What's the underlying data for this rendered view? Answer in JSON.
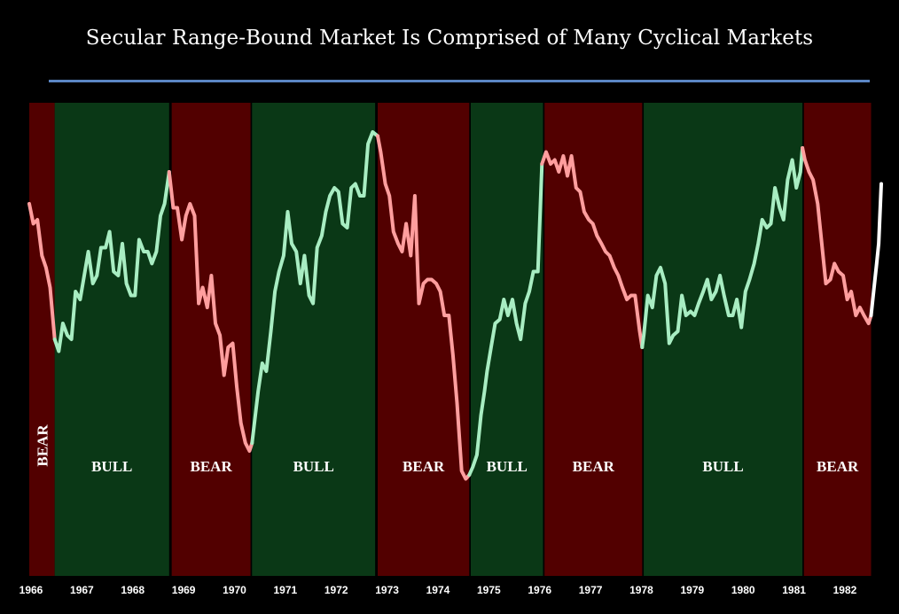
{
  "chart_data": {
    "type": "line",
    "title": "Secular Range-Bound Market Is Comprised of Many Cyclical Markets",
    "xlabel": "",
    "ylabel": "",
    "xlim": [
      1966.0,
      1982.75
    ],
    "ylim": [
      0,
      100
    ],
    "grid": false,
    "x_tick_labels": [
      "1966",
      "1967",
      "1968",
      "1969",
      "1970",
      "1971",
      "1972",
      "1973",
      "1974",
      "1975",
      "1976",
      "1977",
      "1978",
      "1979",
      "1980",
      "1981",
      "1982"
    ],
    "colors": {
      "background": "#000000",
      "bear_region": "#520000",
      "bull_region": "#0a3816",
      "bear_line": "#ff9e9e",
      "bull_line": "#a8edc2",
      "current_line": "#ffffff",
      "title_rule": "#5b86c4"
    },
    "regimes": [
      {
        "type": "bear",
        "label": "BEAR",
        "start": 1966.0,
        "end": 1966.5,
        "vertical": true
      },
      {
        "type": "bull",
        "label": "BULL",
        "start": 1966.5,
        "end": 1968.75
      },
      {
        "type": "bear",
        "label": "BEAR",
        "start": 1968.8,
        "end": 1970.35
      },
      {
        "type": "bull",
        "label": "BULL",
        "start": 1970.38,
        "end": 1972.8
      },
      {
        "type": "bear",
        "label": "BEAR",
        "start": 1972.85,
        "end": 1974.65
      },
      {
        "type": "bull",
        "label": "BULL",
        "start": 1974.68,
        "end": 1976.1
      },
      {
        "type": "bear",
        "label": "BEAR",
        "start": 1976.13,
        "end": 1978.05
      },
      {
        "type": "bull",
        "label": "BULL",
        "start": 1978.08,
        "end": 1981.2
      },
      {
        "type": "bear",
        "label": "BEAR",
        "start": 1981.23,
        "end": 1982.55
      }
    ],
    "series": [
      {
        "regime": "bear",
        "x": [
          1966.0,
          1966.08,
          1966.16,
          1966.25,
          1966.33,
          1966.41,
          1966.5
        ],
        "y": [
          80,
          75,
          76,
          67,
          64,
          59,
          46
        ]
      },
      {
        "regime": "bull",
        "x": [
          1966.5,
          1966.58,
          1966.66,
          1966.75,
          1966.83,
          1966.91,
          1967.0,
          1967.08,
          1967.16,
          1967.25,
          1967.33,
          1967.41,
          1967.5,
          1967.58,
          1967.66,
          1967.75,
          1967.83,
          1967.91,
          1968.0,
          1968.08,
          1968.16,
          1968.25,
          1968.33,
          1968.41,
          1968.5,
          1968.58,
          1968.66,
          1968.75
        ],
        "y": [
          46,
          43,
          50,
          47,
          46,
          58,
          56,
          62,
          68,
          60,
          62,
          69,
          69,
          73,
          63,
          62,
          70,
          60,
          57,
          57,
          71,
          68,
          68,
          65,
          68,
          77,
          80,
          88
        ]
      },
      {
        "regime": "bear",
        "x": [
          1968.75,
          1968.83,
          1968.91,
          1969.0,
          1969.08,
          1969.16,
          1969.25,
          1969.33,
          1969.41,
          1969.5,
          1969.58,
          1969.66,
          1969.75,
          1969.83,
          1969.91,
          1970.0,
          1970.08,
          1970.16,
          1970.25,
          1970.33,
          1970.38
        ],
        "y": [
          88,
          79,
          79,
          71,
          77,
          80,
          77,
          55,
          59,
          54,
          62,
          50,
          47,
          37,
          44,
          45,
          34,
          25,
          20,
          18,
          20
        ]
      },
      {
        "regime": "bull",
        "x": [
          1970.38,
          1970.5,
          1970.58,
          1970.66,
          1970.75,
          1970.83,
          1970.91,
          1971.0,
          1971.08,
          1971.16,
          1971.25,
          1971.33,
          1971.41,
          1971.5,
          1971.58,
          1971.66,
          1971.75,
          1971.83,
          1971.91,
          1972.0,
          1972.08,
          1972.16,
          1972.25,
          1972.33,
          1972.41,
          1972.5,
          1972.58,
          1972.66,
          1972.75,
          1972.85
        ],
        "y": [
          20,
          33,
          40,
          38,
          48,
          58,
          63,
          67,
          78,
          70,
          68,
          60,
          67,
          57,
          55,
          69,
          72,
          78,
          82,
          84,
          83,
          75,
          74,
          84,
          85,
          82,
          82,
          95,
          98,
          97
        ]
      },
      {
        "regime": "bear",
        "x": [
          1972.85,
          1972.91,
          1973.0,
          1973.08,
          1973.16,
          1973.25,
          1973.33,
          1973.41,
          1973.5,
          1973.58,
          1973.66,
          1973.75,
          1973.83,
          1973.91,
          1974.0,
          1974.08,
          1974.16,
          1974.25,
          1974.33,
          1974.41,
          1974.5,
          1974.58,
          1974.65
        ],
        "y": [
          97,
          93,
          85,
          82,
          73,
          70,
          68,
          75,
          67,
          82,
          55,
          60,
          61,
          61,
          60,
          58,
          52,
          52,
          42,
          30,
          13,
          11,
          12
        ]
      },
      {
        "regime": "bull",
        "x": [
          1974.65,
          1974.72,
          1974.8,
          1974.88,
          1974.95,
          1975.0,
          1975.08,
          1975.16,
          1975.25,
          1975.33,
          1975.41,
          1975.5,
          1975.58,
          1975.66,
          1975.75,
          1975.83,
          1975.91,
          1976.0,
          1976.08
        ],
        "y": [
          12,
          14,
          17,
          27,
          33,
          38,
          44,
          50,
          51,
          56,
          52,
          56,
          50,
          46,
          55,
          58,
          63,
          63,
          90
        ]
      },
      {
        "regime": "bear",
        "x": [
          1976.08,
          1976.16,
          1976.25,
          1976.33,
          1976.41,
          1976.5,
          1976.58,
          1976.66,
          1976.75,
          1976.83,
          1976.91,
          1977.0,
          1977.08,
          1977.16,
          1977.25,
          1977.33,
          1977.41,
          1977.5,
          1977.58,
          1977.66,
          1977.75,
          1977.83,
          1977.91,
          1978.0,
          1978.05
        ],
        "y": [
          90,
          93,
          90,
          91,
          88,
          92,
          87,
          92,
          84,
          83,
          78,
          76,
          75,
          72,
          70,
          68,
          67,
          64,
          62,
          59,
          56,
          57,
          57,
          48,
          44
        ]
      },
      {
        "regime": "bull",
        "x": [
          1978.05,
          1978.08,
          1978.16,
          1978.25,
          1978.33,
          1978.41,
          1978.5,
          1978.58,
          1978.66,
          1978.75,
          1978.83,
          1978.91,
          1979.0,
          1979.08,
          1979.16,
          1979.25,
          1979.33,
          1979.41,
          1979.5,
          1979.58,
          1979.66,
          1979.75,
          1979.83,
          1979.91,
          1980.0,
          1980.08,
          1980.16,
          1980.25,
          1980.33,
          1980.41,
          1980.5,
          1980.58,
          1980.66,
          1980.75,
          1980.83,
          1980.91,
          1981.0,
          1981.08,
          1981.16,
          1981.2
        ],
        "y": [
          44,
          47,
          57,
          54,
          62,
          64,
          60,
          45,
          47,
          48,
          57,
          52,
          53,
          52,
          55,
          58,
          61,
          56,
          58,
          62,
          57,
          52,
          52,
          56,
          49,
          58,
          61,
          65,
          70,
          76,
          74,
          75,
          84,
          79,
          76,
          86,
          91,
          84,
          88,
          94
        ]
      },
      {
        "regime": "bear",
        "x": [
          1981.2,
          1981.25,
          1981.33,
          1981.41,
          1981.5,
          1981.58,
          1981.66,
          1981.75,
          1981.83,
          1981.91,
          1982.0,
          1982.08,
          1982.16,
          1982.25,
          1982.33,
          1982.41,
          1982.5,
          1982.55
        ],
        "y": [
          94,
          91,
          88,
          86,
          80,
          70,
          60,
          61,
          65,
          63,
          62,
          56,
          58,
          52,
          54,
          52,
          50,
          52
        ]
      },
      {
        "regime": "current",
        "x": [
          1982.55,
          1982.6,
          1982.66,
          1982.7,
          1982.75
        ],
        "y": [
          52,
          58,
          65,
          70,
          85
        ]
      }
    ]
  }
}
